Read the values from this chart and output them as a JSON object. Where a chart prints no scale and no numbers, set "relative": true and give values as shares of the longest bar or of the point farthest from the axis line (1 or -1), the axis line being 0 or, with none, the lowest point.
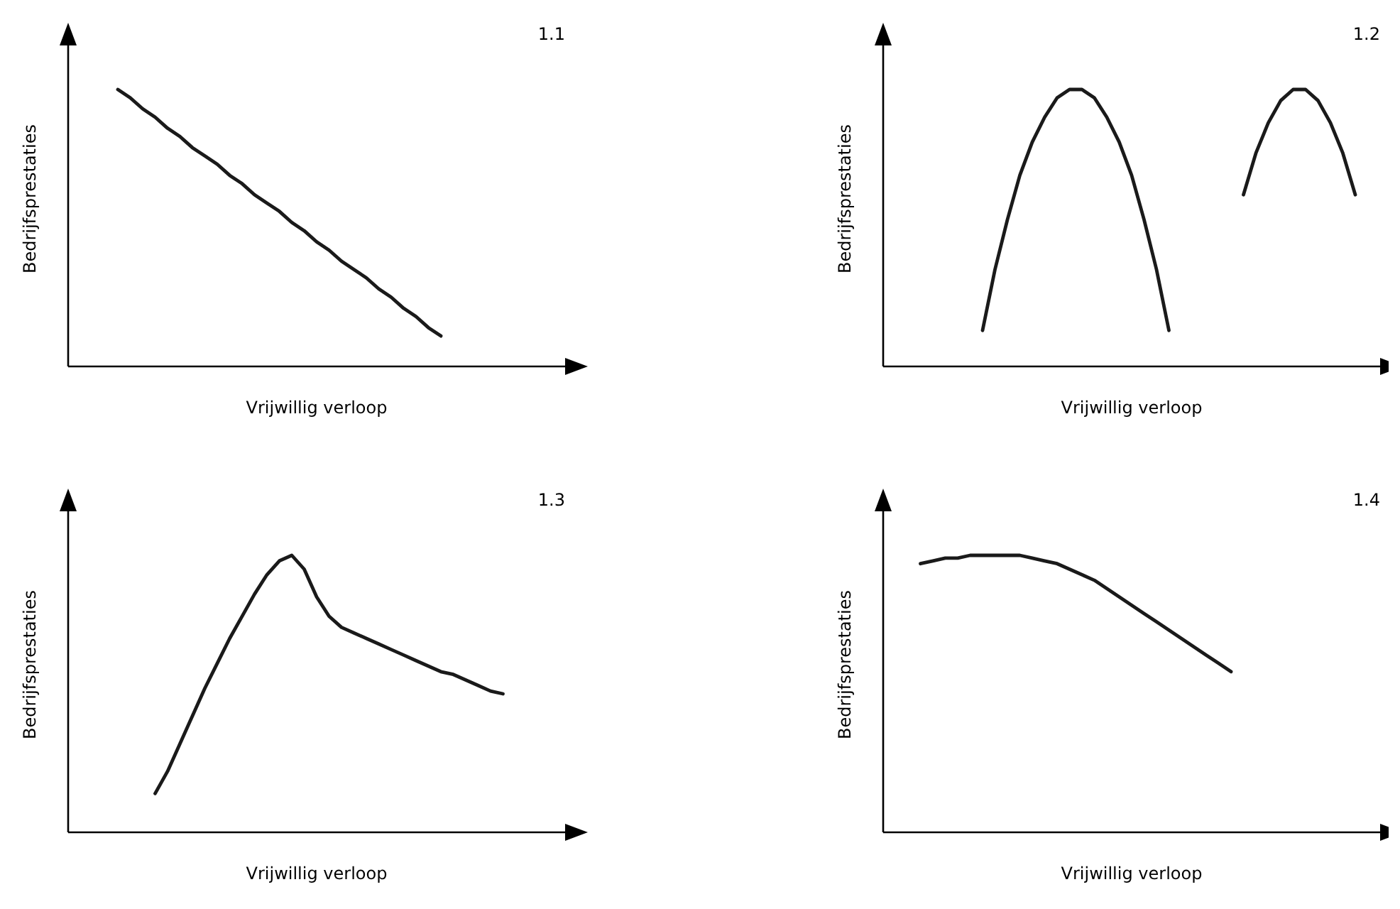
{
  "chart_data": [
    {
      "type": "line",
      "title": "1.1",
      "xlabel": "Vrijwillig verloop",
      "ylabel": "Bedrijfsprestaties",
      "relative": true,
      "categories": [
        null,
        null,
        null,
        null,
        null,
        null,
        null,
        null,
        null,
        null,
        null,
        null,
        null,
        null,
        null,
        null,
        null,
        null,
        null,
        null,
        null,
        null,
        null,
        null,
        null,
        null,
        null,
        null,
        null,
        null,
        null,
        null,
        null,
        null,
        null,
        null,
        null,
        null,
        null,
        null,
        null
      ],
      "series": [
        {
          "color": "#1a1a1a",
          "values": [
            null,
            null,
            null,
            null,
            1,
            0.97,
            0.93,
            0.9,
            0.86,
            0.83,
            0.79,
            0.76,
            0.73,
            0.69,
            0.66,
            0.62,
            0.59,
            0.56,
            0.52,
            0.49,
            0.45,
            0.42,
            0.38,
            0.35,
            0.32,
            0.28,
            0.25,
            0.21,
            0.18,
            0.14,
            0.11,
            null,
            null,
            null,
            null,
            null,
            null,
            null,
            null,
            null,
            null
          ]
        }
      ]
    },
    {
      "type": "line",
      "title": "1.2",
      "xlabel": "Vrijwillig verloop",
      "ylabel": "Bedrijfsprestaties",
      "relative": true,
      "categories": [
        null,
        null,
        null,
        null,
        null,
        null,
        null,
        null,
        null,
        null,
        null,
        null,
        null,
        null,
        null,
        null,
        null,
        null,
        null,
        null,
        null,
        null,
        null,
        null,
        null,
        null,
        null,
        null,
        null,
        null,
        null,
        null,
        null,
        null,
        null,
        null,
        null,
        null,
        null,
        null,
        null
      ],
      "series": [
        {
          "color": "#1a1a1a",
          "values": [
            null,
            null,
            null,
            null,
            null,
            null,
            null,
            null,
            0.13,
            0.35,
            0.53,
            0.69,
            0.81,
            0.9,
            0.97,
            1,
            1,
            0.97,
            0.9,
            0.81,
            0.69,
            0.53,
            0.35,
            0.13,
            null,
            null,
            null,
            null,
            null,
            null,
            null,
            null,
            null,
            null,
            null,
            null,
            null,
            null,
            null,
            null,
            null
          ]
        },
        {
          "color": "#1a1a1a",
          "values": [
            null,
            null,
            null,
            null,
            null,
            null,
            null,
            null,
            null,
            null,
            null,
            null,
            null,
            null,
            null,
            null,
            null,
            null,
            null,
            null,
            null,
            null,
            null,
            null,
            null,
            null,
            null,
            null,
            null,
            0.62,
            0.77,
            0.88,
            0.96,
            1,
            1,
            0.96,
            0.88,
            0.77,
            0.62,
            null,
            null
          ]
        }
      ]
    },
    {
      "type": "line",
      "title": "1.3",
      "xlabel": "Vrijwillig verloop",
      "ylabel": "Bedrijfsprestaties",
      "relative": true,
      "categories": [
        null,
        null,
        null,
        null,
        null,
        null,
        null,
        null,
        null,
        null,
        null,
        null,
        null,
        null,
        null,
        null,
        null,
        null,
        null,
        null,
        null,
        null,
        null,
        null,
        null,
        null,
        null,
        null,
        null,
        null,
        null,
        null,
        null,
        null,
        null,
        null,
        null,
        null,
        null,
        null,
        null
      ],
      "series": [
        {
          "color": "#1a1a1a",
          "values": [
            null,
            null,
            null,
            null,
            null,
            null,
            null,
            0.14,
            0.22,
            0.32,
            0.42,
            0.52,
            0.61,
            0.7,
            0.78,
            0.86,
            0.93,
            0.98,
            1,
            0.95,
            0.85,
            0.78,
            0.74,
            0.72,
            0.7,
            0.68,
            0.66,
            0.64,
            0.62,
            0.6,
            0.58,
            0.57,
            0.55,
            0.53,
            0.51,
            0.5,
            null,
            null,
            null,
            null,
            null
          ]
        }
      ]
    },
    {
      "type": "line",
      "title": "1.4",
      "xlabel": "Vrijwillig verloop",
      "ylabel": "Bedrijfsprestaties",
      "relative": true,
      "categories": [
        null,
        null,
        null,
        null,
        null,
        null,
        null,
        null,
        null,
        null,
        null,
        null,
        null,
        null,
        null,
        null,
        null,
        null,
        null,
        null,
        null,
        null,
        null,
        null,
        null,
        null,
        null,
        null,
        null,
        null,
        null,
        null,
        null,
        null,
        null,
        null,
        null,
        null,
        null,
        null,
        null
      ],
      "series": [
        {
          "color": "#1a1a1a",
          "values": [
            null,
            null,
            null,
            0.97,
            0.98,
            0.99,
            0.99,
            1,
            1,
            1,
            1,
            1,
            0.99,
            0.98,
            0.97,
            0.95,
            0.93,
            0.91,
            0.88,
            0.85,
            0.82,
            0.79,
            0.76,
            0.73,
            0.7,
            0.67,
            0.64,
            0.61,
            0.58,
            null,
            null,
            null,
            null,
            null,
            null,
            null,
            null,
            null,
            null,
            null,
            null
          ]
        }
      ]
    }
  ]
}
